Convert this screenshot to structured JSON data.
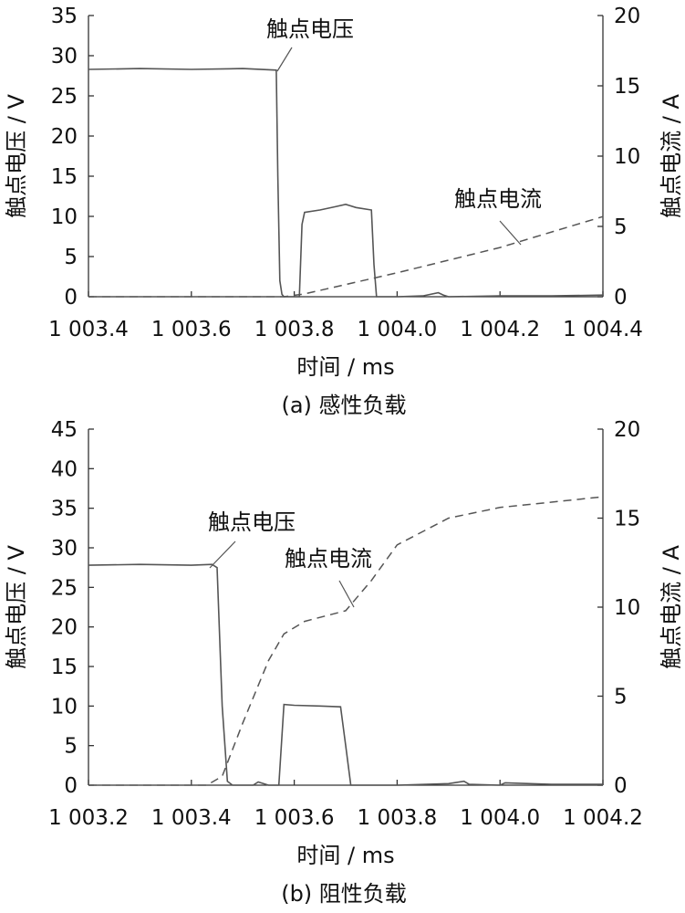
{
  "chart_data": [
    {
      "type": "line",
      "caption": "(a)  感性负载",
      "xlabel": "时间 / ms",
      "ylabel_left": "触点电压 / V",
      "ylabel_right": "触点电流 / A",
      "xlim": [
        1003.4,
        1004.4
      ],
      "ylim_left": [
        0,
        35
      ],
      "ylim_right": [
        0,
        20
      ],
      "x_ticks": [
        "1 003.4",
        "1 003.6",
        "1 003.8",
        "1 004.0",
        "1 004.2",
        "1 004.4"
      ],
      "y_left_ticks": [
        "0",
        "5",
        "10",
        "15",
        "20",
        "25",
        "30",
        "35"
      ],
      "y_right_ticks": [
        "0",
        "5",
        "10",
        "15",
        "20"
      ],
      "grid": false,
      "series": [
        {
          "name": "触点电压",
          "axis": "left",
          "style": "solid",
          "x": [
            1003.4,
            1003.5,
            1003.6,
            1003.7,
            1003.765,
            1003.768,
            1003.772,
            1003.776,
            1003.78,
            1003.79,
            1003.81,
            1003.815,
            1003.82,
            1003.85,
            1003.88,
            1003.9,
            1003.92,
            1003.95,
            1003.955,
            1003.96,
            1004.0,
            1004.05,
            1004.08,
            1004.09,
            1004.1,
            1004.2,
            1004.3,
            1004.4
          ],
          "y": [
            28.3,
            28.4,
            28.3,
            28.4,
            28.2,
            15,
            2,
            0.3,
            0,
            0,
            0,
            9,
            10.5,
            10.8,
            11.2,
            11.5,
            11.1,
            10.8,
            4,
            0,
            0,
            0.1,
            0.5,
            0.2,
            0,
            0.1,
            0.1,
            0.2
          ]
        },
        {
          "name": "触点电流",
          "axis": "right",
          "style": "dashed",
          "x": [
            1003.4,
            1003.78,
            1003.82,
            1004.0,
            1004.2,
            1004.4
          ],
          "y": [
            0,
            0,
            0.2,
            1.7,
            3.5,
            5.7
          ]
        }
      ],
      "annotations": [
        {
          "text": "触点电压",
          "series": "触点电压"
        },
        {
          "text": "触点电流",
          "series": "触点电流"
        }
      ]
    },
    {
      "type": "line",
      "caption": "(b)  阻性负载",
      "xlabel": "时间 / ms",
      "ylabel_left": "触点电压 / V",
      "ylabel_right": "触点电流 / A",
      "xlim": [
        1003.2,
        1004.2
      ],
      "ylim_left": [
        0,
        45
      ],
      "ylim_right": [
        0,
        20
      ],
      "x_ticks": [
        "1 003.2",
        "1 003.4",
        "1 003.6",
        "1 003.8",
        "1 004.0",
        "1 004.2"
      ],
      "y_left_ticks": [
        "0",
        "5",
        "10",
        "15",
        "20",
        "25",
        "30",
        "35",
        "40",
        "45"
      ],
      "y_right_ticks": [
        "0",
        "5",
        "10",
        "15",
        "20"
      ],
      "grid": false,
      "series": [
        {
          "name": "触点电压",
          "axis": "left",
          "style": "solid",
          "x": [
            1003.2,
            1003.3,
            1003.4,
            1003.44,
            1003.45,
            1003.46,
            1003.47,
            1003.48,
            1003.52,
            1003.53,
            1003.55,
            1003.57,
            1003.58,
            1003.6,
            1003.65,
            1003.69,
            1003.7,
            1003.71,
            1003.8,
            1003.9,
            1003.93,
            1003.94,
            1004.0,
            1004.01,
            1004.1,
            1004.2
          ],
          "y": [
            27.8,
            27.9,
            27.8,
            27.9,
            27.5,
            10,
            0.5,
            0,
            0,
            0.4,
            0,
            0,
            10.2,
            10.1,
            10.0,
            9.9,
            5,
            0,
            0,
            0.2,
            0.5,
            0.1,
            0,
            0.3,
            0.1,
            0.1
          ]
        },
        {
          "name": "触点电流",
          "axis": "right",
          "style": "dashed",
          "x": [
            1003.2,
            1003.43,
            1003.46,
            1003.5,
            1003.55,
            1003.58,
            1003.62,
            1003.7,
            1003.75,
            1003.8,
            1003.9,
            1004.0,
            1004.1,
            1004.2
          ],
          "y": [
            0,
            0,
            0.5,
            3.5,
            7,
            8.5,
            9.2,
            9.8,
            11.5,
            13.5,
            15,
            15.6,
            15.9,
            16.2
          ]
        }
      ],
      "annotations": [
        {
          "text": "触点电压",
          "series": "触点电压"
        },
        {
          "text": "触点电流",
          "series": "触点电流"
        }
      ]
    }
  ]
}
